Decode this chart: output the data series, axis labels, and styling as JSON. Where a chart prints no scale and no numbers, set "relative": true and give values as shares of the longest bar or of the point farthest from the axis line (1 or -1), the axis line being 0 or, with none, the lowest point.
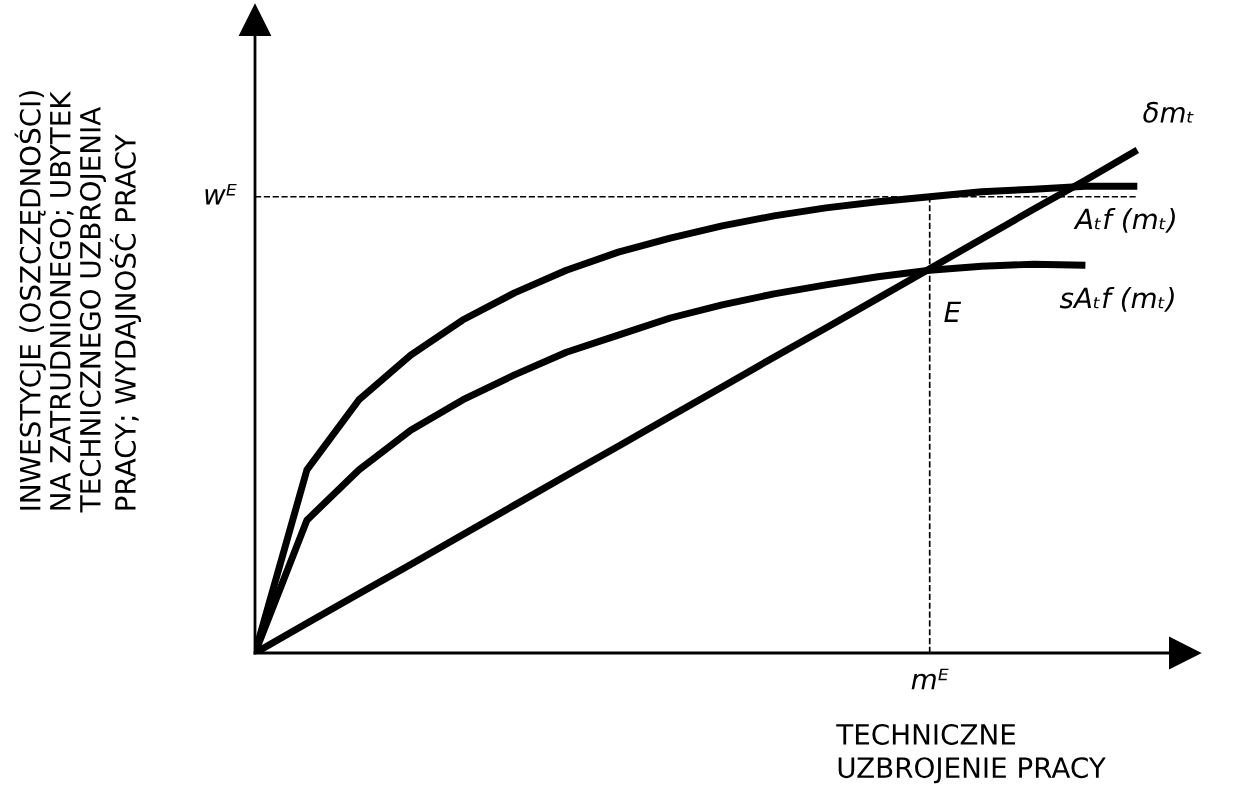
{
  "chart_data": {
    "type": "line",
    "relative": true,
    "xlabel": "TECHNICZNE\nUZBROJENIE PRACY",
    "ylabel": "INWESTYCJE (OSZCZĘDNOŚCI)\nNA ZATRUDNIONEGO; UBYTEK\nTECHNICZNEGO UZBROJENIA\nPRACY; WYDAJNOŚĆ PRACY",
    "categories": [
      null,
      null,
      null,
      null,
      null,
      null,
      null,
      null,
      null,
      null,
      null,
      null,
      null,
      null,
      null,
      null,
      null,
      null
    ],
    "series": [
      {
        "name": "δmₜ",
        "color": "#000000",
        "values": [
          0,
          0.059,
          0.118,
          0.176,
          0.235,
          0.294,
          0.353,
          0.411,
          0.47,
          0.529,
          0.588,
          0.646,
          0.705,
          0.764,
          0.823,
          0.882,
          0.94,
          1.0
        ]
      },
      {
        "name": "Aₜf (mₜ)",
        "color": "#000000",
        "values": [
          0,
          0.364,
          0.503,
          0.592,
          0.662,
          0.716,
          0.761,
          0.797,
          0.825,
          0.849,
          0.869,
          0.885,
          0.897,
          0.907,
          0.917,
          0.922,
          0.928,
          0.928
        ]
      },
      {
        "name": "sAₜf (mₜ)",
        "color": "#000000",
        "values": [
          0,
          0.264,
          0.364,
          0.443,
          0.503,
          0.553,
          0.598,
          0.632,
          0.666,
          0.692,
          0.714,
          0.732,
          0.748,
          0.761,
          0.769,
          0.773,
          0.771,
          null
        ]
      }
    ],
    "ref_lines": [
      {
        "axis": "y",
        "value": 0.907,
        "label": "wᴱ",
        "line_style": "dashed",
        "color": "#000000"
      }
    ],
    "annotations": [
      "E",
      "mᴱ"
    ],
    "legend": false,
    "marker": "none",
    "line_style": "solid"
  }
}
